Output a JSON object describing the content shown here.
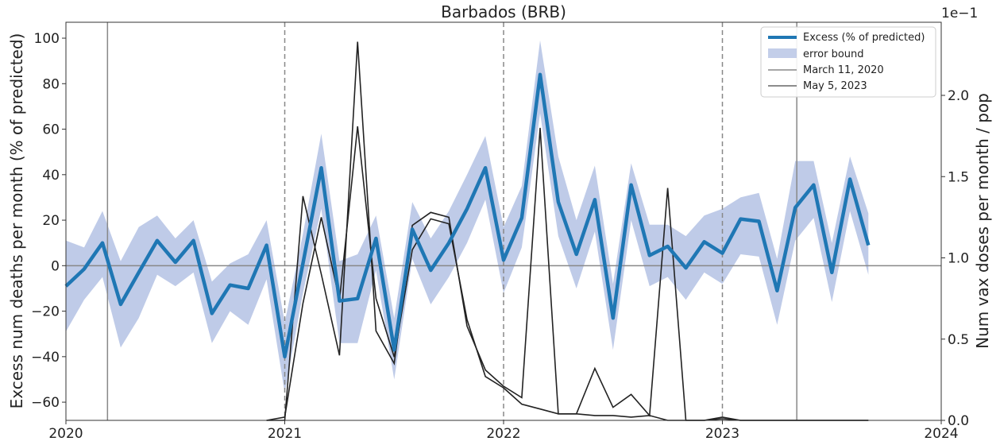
{
  "chart_data": {
    "type": "line",
    "title": "Barbados (BRB)",
    "ylabel": "Excess num deaths per month (% of predicted)",
    "ylabel_right": "Num vax doses per month / pop",
    "right_axis_multiplier": "1e−1",
    "xlim": [
      2020.0,
      2024.0
    ],
    "ylim": [
      -68,
      107
    ],
    "ylim_right": [
      0.0,
      2.45
    ],
    "x_ticks": [
      2020,
      2021,
      2022,
      2023,
      2024
    ],
    "x_tick_labels": [
      "2020",
      "2021",
      "2022",
      "2023",
      "2024"
    ],
    "y_ticks": [
      -60,
      -40,
      -20,
      0,
      20,
      40,
      60,
      80,
      100
    ],
    "y_tick_labels": [
      "−60",
      "−40",
      "−20",
      "0",
      "20",
      "40",
      "60",
      "80",
      "100"
    ],
    "y_ticks_right": [
      0.0,
      0.5,
      1.0,
      1.5,
      2.0
    ],
    "y_tick_labels_right": [
      "0.0",
      "0.5",
      "1.0",
      "1.5",
      "2.0"
    ],
    "legend_position": "top-right",
    "legend": [
      "Excess (% of predicted)",
      "error bound",
      "March 11, 2020",
      "May 5, 2023"
    ],
    "reference_lines": {
      "horizontal_zero": 0,
      "solid_vertical": [
        2020.19,
        2023.34
      ],
      "dashed_vertical": [
        2021.0,
        2022.0,
        2023.0
      ]
    },
    "colors": {
      "excess": "#1f77b4",
      "error_band": "#aab9e0",
      "vax": "#222222",
      "reference": "#888888"
    },
    "series": [
      {
        "name": "Excess (% of predicted)",
        "x": [
          2020.0,
          2020.083,
          2020.167,
          2020.25,
          2020.333,
          2020.417,
          2020.5,
          2020.583,
          2020.667,
          2020.75,
          2020.833,
          2020.917,
          2021.0,
          2021.083,
          2021.167,
          2021.25,
          2021.333,
          2021.417,
          2021.5,
          2021.583,
          2021.667,
          2021.75,
          2021.833,
          2021.917,
          2022.0,
          2022.083,
          2022.167,
          2022.25,
          2022.333,
          2022.417,
          2022.5,
          2022.583,
          2022.667,
          2022.75,
          2022.833,
          2022.917,
          2023.0,
          2023.083,
          2023.167,
          2023.25,
          2023.333,
          2023.417,
          2023.5,
          2023.583,
          2023.667
        ],
        "values": [
          -9,
          -1.5,
          10,
          -17,
          -3,
          11,
          1.5,
          11,
          -21,
          -8.5,
          -10,
          9,
          -40,
          1,
          43,
          -15.5,
          -14.5,
          12,
          -37,
          16,
          -2,
          10,
          25,
          43,
          2.5,
          21,
          84,
          28,
          5,
          29,
          -23,
          35.5,
          4.5,
          8.5,
          -1,
          10.5,
          5.5,
          20.5,
          19.5,
          -11,
          25.5,
          35.5,
          -3,
          38,
          9
        ]
      },
      {
        "name": "error bound",
        "x": [
          2020.0,
          2020.083,
          2020.167,
          2020.25,
          2020.333,
          2020.417,
          2020.5,
          2020.583,
          2020.667,
          2020.75,
          2020.833,
          2020.917,
          2021.0,
          2021.083,
          2021.167,
          2021.25,
          2021.333,
          2021.417,
          2021.5,
          2021.583,
          2021.667,
          2021.75,
          2021.833,
          2021.917,
          2022.0,
          2022.083,
          2022.167,
          2022.25,
          2022.333,
          2022.417,
          2022.5,
          2022.583,
          2022.667,
          2022.75,
          2022.833,
          2022.917,
          2023.0,
          2023.083,
          2023.167,
          2023.25,
          2023.333,
          2023.417,
          2023.5,
          2023.583,
          2023.667
        ],
        "lower": [
          -29,
          -15,
          -5,
          -36,
          -23,
          -4,
          -9,
          -3,
          -34,
          -20,
          -26,
          -6,
          -56,
          -12,
          25,
          -34,
          -34,
          -2,
          -50,
          3,
          -17,
          -5,
          10,
          29,
          -12,
          8,
          67,
          13,
          -10,
          15,
          -37,
          20,
          -9,
          -5,
          -15,
          -3,
          -8,
          5,
          4,
          -26,
          11,
          21,
          -16,
          24,
          -4
        ],
        "upper": [
          11,
          8,
          24,
          2,
          17,
          22,
          12,
          20,
          -7,
          1,
          5,
          20,
          -25,
          14,
          58,
          2,
          5,
          22,
          -23,
          28,
          12,
          24,
          40,
          57,
          17,
          35,
          99,
          48,
          20,
          44,
          -8,
          45,
          18,
          18,
          13,
          22,
          25,
          30,
          32,
          3,
          46,
          46,
          10,
          48,
          23
        ]
      },
      {
        "name": "vax doses per month / pop (series A)",
        "axis": "right",
        "x": [
          2020.917,
          2021.0,
          2021.083,
          2021.167,
          2021.25,
          2021.333,
          2021.417,
          2021.5,
          2021.583,
          2021.667,
          2021.75,
          2021.833,
          2021.917,
          2022.0,
          2022.083,
          2022.167,
          2022.25,
          2022.333,
          2022.417,
          2022.5,
          2022.583,
          2022.667,
          2022.75,
          2022.833,
          2022.917,
          2023.0,
          2023.083,
          2023.167,
          2023.25,
          2023.333,
          2023.417,
          2023.5,
          2023.583,
          2023.667
        ],
        "values": [
          0.0,
          0.0,
          1.38,
          0.9,
          0.4,
          2.33,
          0.55,
          0.35,
          1.2,
          1.28,
          1.25,
          0.58,
          0.31,
          0.21,
          0.14,
          1.8,
          0.04,
          0.04,
          0.32,
          0.08,
          0.16,
          0.03,
          1.43,
          0.0,
          0.0,
          0.01,
          0.0,
          0.0,
          0.0,
          0.0,
          0.0,
          0.0,
          0.0,
          0.0
        ]
      },
      {
        "name": "vax doses per month / pop (series B)",
        "axis": "right",
        "x": [
          2020.917,
          2021.0,
          2021.083,
          2021.167,
          2021.25,
          2021.333,
          2021.417,
          2021.5,
          2021.583,
          2021.667,
          2021.75,
          2021.833,
          2021.917,
          2022.0,
          2022.083,
          2022.167,
          2022.25,
          2022.333,
          2022.417,
          2022.5,
          2022.583,
          2022.667,
          2022.75,
          2022.833,
          2022.917,
          2023.0,
          2023.083,
          2023.167,
          2023.25,
          2023.333,
          2023.417,
          2023.5,
          2023.583,
          2023.667
        ],
        "values": [
          0.0,
          0.02,
          0.72,
          1.25,
          0.74,
          1.81,
          0.75,
          0.39,
          1.05,
          1.24,
          1.21,
          0.62,
          0.27,
          0.2,
          0.1,
          0.07,
          0.04,
          0.04,
          0.03,
          0.03,
          0.02,
          0.03,
          0.0,
          0.0,
          0.0,
          0.02,
          0.0,
          0.0,
          0.0,
          0.0,
          0.0,
          0.0,
          0.0,
          0.0
        ]
      }
    ]
  }
}
